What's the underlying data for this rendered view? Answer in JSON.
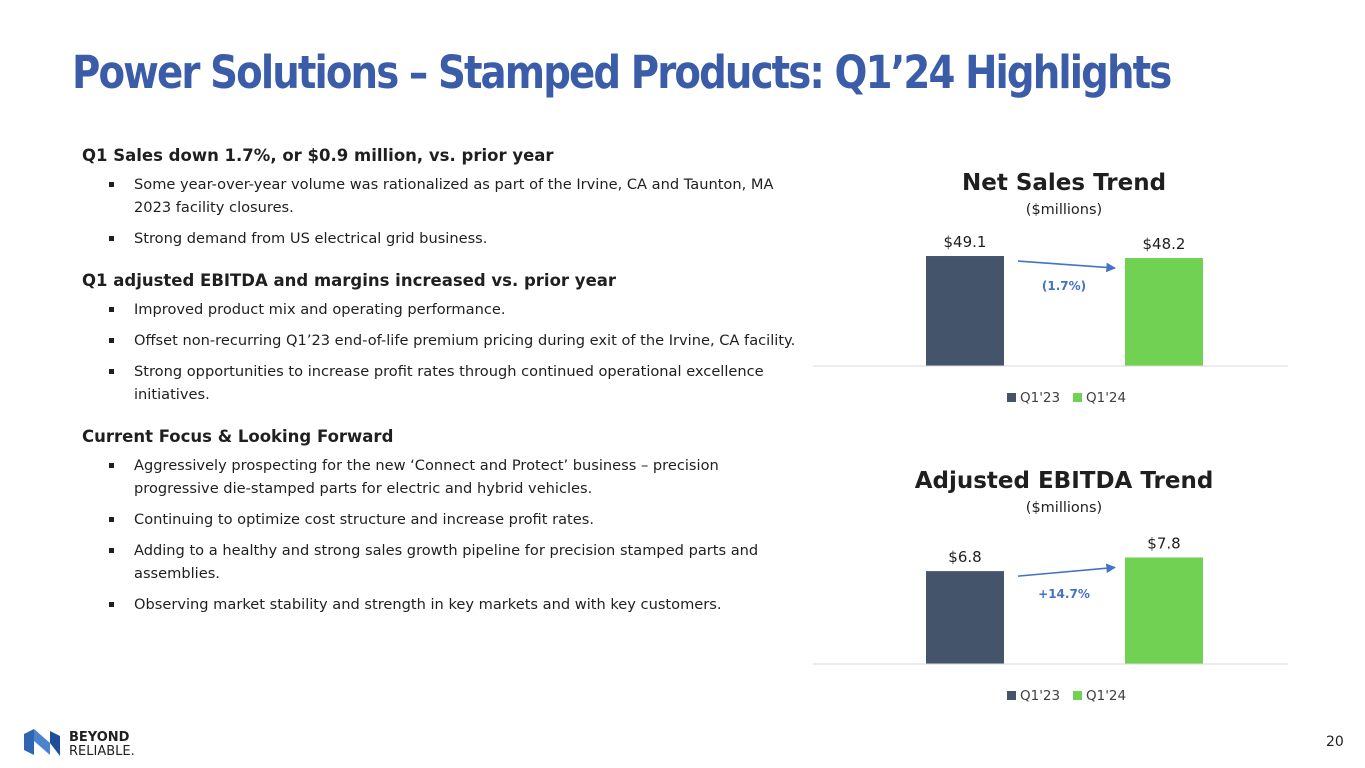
{
  "title": "Power Solutions – Stamped Products: Q1’24 Highlights",
  "sections": [
    {
      "heading": "Q1 Sales down 1.7%, or $0.9 million, vs. prior year",
      "bullets": [
        "Some year-over-year volume was rationalized as part of the Irvine, CA and Taunton, MA 2023 facility closures.",
        "Strong demand from US electrical grid business."
      ]
    },
    {
      "heading": "Q1 adjusted EBITDA and margins increased vs. prior year",
      "bullets": [
        "Improved product mix and operating performance.",
        "Offset non-recurring Q1’23 end-of-life premium pricing during exit of the Irvine, CA facility.",
        "Strong opportunities to increase profit rates through continued operational excellence initiatives."
      ]
    },
    {
      "heading": "Current Focus & Looking Forward",
      "bullets": [
        "Aggressively prospecting for the new ‘Connect and Protect’ business – precision progressive die-stamped parts for electric and hybrid vehicles.",
        "Continuing to optimize cost structure and increase profit rates.",
        "Adding to a healthy and strong sales growth pipeline for precision stamped parts and assemblies.",
        "Observing market stability and strength in key markets and with key customers."
      ]
    }
  ],
  "chart_data": [
    {
      "type": "bar",
      "title": "Net Sales Trend",
      "subtitle": "($millions)",
      "categories": [
        "Q1'23",
        "Q1'24"
      ],
      "values": [
        49.1,
        48.2
      ],
      "data_labels": [
        "$49.1",
        "$48.2"
      ],
      "colors": [
        "#44546a",
        "#70d153"
      ],
      "change_label": "(1.7%)",
      "ylim": [
        0,
        50
      ],
      "legend": "bottom"
    },
    {
      "type": "bar",
      "title": "Adjusted EBITDA Trend",
      "subtitle": "($millions)",
      "categories": [
        "Q1'23",
        "Q1'24"
      ],
      "values": [
        6.8,
        7.8
      ],
      "data_labels": [
        "$6.8",
        "$7.8"
      ],
      "colors": [
        "#44546a",
        "#70d153"
      ],
      "change_label": "+14.7%",
      "ylim": [
        0,
        8.2
      ],
      "legend": "bottom"
    }
  ],
  "logo": {
    "line1": "BEYOND",
    "line2": "RELIABLE."
  },
  "page_number": "20",
  "colors": {
    "title": "#3b5ca8",
    "arrow": "#4472c4",
    "change_text": "#4472c4"
  }
}
